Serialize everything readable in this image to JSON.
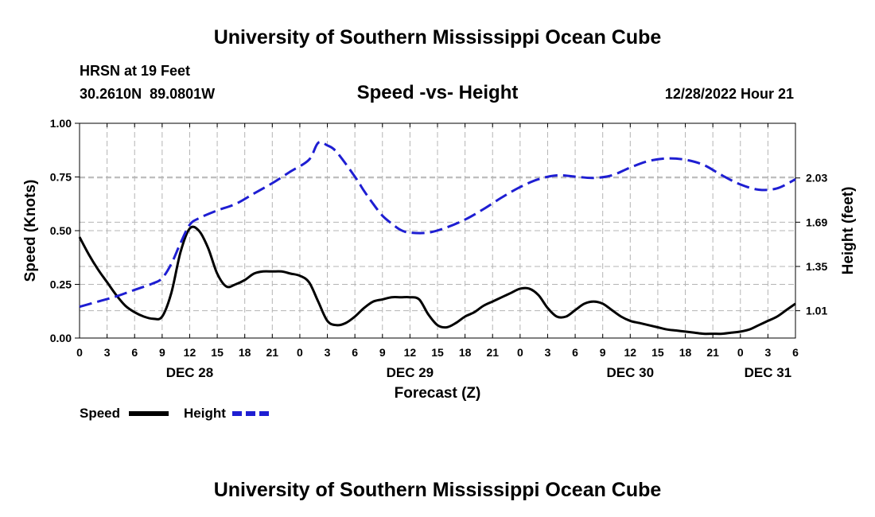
{
  "header": {
    "title": "University of Southern Mississippi Ocean Cube",
    "station": "HRSN at 19 Feet",
    "coordinates": "30.2610N  89.0801W",
    "datetime": "12/28/2022 Hour 21"
  },
  "footer": {
    "title": "University of Southern Mississippi Ocean Cube"
  },
  "chart_data": {
    "type": "line",
    "title": "Speed -vs- Height",
    "xlabel": "Forecast (Z)",
    "ylabel": "Speed (Knots)",
    "y2label": "Height (feet)",
    "x_unit": "forecast hour from 0Z Dec 28",
    "xlim": [
      0,
      78
    ],
    "ylim": [
      0,
      1
    ],
    "y2lim": [
      0.8,
      2.45
    ],
    "grid": true,
    "x_tick_hours": [
      0,
      3,
      6,
      9,
      12,
      15,
      18,
      21,
      24,
      27,
      30,
      33,
      36,
      39,
      42,
      45,
      48,
      51,
      54,
      57,
      60,
      63,
      66,
      69,
      72,
      75,
      78
    ],
    "x_tick_labels": [
      "0",
      "3",
      "6",
      "9",
      "12",
      "15",
      "18",
      "21",
      "0",
      "3",
      "6",
      "9",
      "12",
      "15",
      "18",
      "21",
      "0",
      "3",
      "6",
      "9",
      "12",
      "15",
      "18",
      "21",
      "0",
      "3",
      "6"
    ],
    "y_ticks": [
      0,
      0.25,
      0.5,
      0.75,
      1.0
    ],
    "y_tick_labels": [
      "0.00",
      "0.25",
      "0.50",
      "0.75",
      "1.00"
    ],
    "y2_ticks": [
      1.01,
      1.35,
      1.69,
      2.03
    ],
    "y2_tick_labels": [
      "1.01",
      "1.35",
      "1.69",
      "2.03"
    ],
    "day_labels": [
      {
        "hour": 12,
        "label": "DEC 28"
      },
      {
        "hour": 36,
        "label": "DEC 29"
      },
      {
        "hour": 60,
        "label": "DEC 30"
      },
      {
        "hour": 75,
        "label": "DEC 31"
      }
    ],
    "series": [
      {
        "name": "Speed",
        "axis": "left",
        "color": "#000000",
        "dash": "solid",
        "x": [
          0,
          1,
          2,
          3,
          4,
          5,
          6,
          7,
          8,
          9,
          10,
          11,
          12,
          13,
          14,
          15,
          16,
          17,
          18,
          19,
          20,
          21,
          22,
          23,
          24,
          25,
          26,
          27,
          28,
          29,
          30,
          31,
          32,
          33,
          34,
          35,
          36,
          37,
          38,
          39,
          40,
          41,
          42,
          43,
          44,
          45,
          46,
          47,
          48,
          49,
          50,
          51,
          52,
          53,
          54,
          55,
          56,
          57,
          58,
          59,
          60,
          61,
          62,
          63,
          64,
          65,
          66,
          67,
          68,
          69,
          70,
          71,
          72,
          73,
          74,
          75,
          76,
          77,
          78
        ],
        "values": [
          0.47,
          0.39,
          0.32,
          0.26,
          0.2,
          0.15,
          0.12,
          0.1,
          0.09,
          0.1,
          0.21,
          0.4,
          0.51,
          0.5,
          0.42,
          0.3,
          0.24,
          0.25,
          0.27,
          0.3,
          0.31,
          0.31,
          0.31,
          0.3,
          0.29,
          0.26,
          0.17,
          0.08,
          0.06,
          0.07,
          0.1,
          0.14,
          0.17,
          0.18,
          0.19,
          0.19,
          0.19,
          0.18,
          0.11,
          0.06,
          0.05,
          0.07,
          0.1,
          0.12,
          0.15,
          0.17,
          0.19,
          0.21,
          0.23,
          0.23,
          0.2,
          0.14,
          0.1,
          0.1,
          0.13,
          0.16,
          0.17,
          0.16,
          0.13,
          0.1,
          0.08,
          0.07,
          0.06,
          0.05,
          0.04,
          0.035,
          0.03,
          0.025,
          0.02,
          0.02,
          0.02,
          0.025,
          0.03,
          0.04,
          0.06,
          0.08,
          0.1,
          0.13,
          0.16
        ]
      },
      {
        "name": "Height",
        "axis": "right",
        "color": "#1e1ed2",
        "dash": "dashed",
        "x": [
          0,
          2,
          4,
          6,
          8,
          9,
          10,
          11,
          12,
          13,
          15,
          17,
          19,
          21,
          23,
          25,
          26,
          27,
          28,
          30,
          31,
          32,
          33,
          34,
          35,
          36,
          38,
          40,
          42,
          44,
          46,
          48,
          50,
          52,
          54,
          56,
          58,
          60,
          62,
          64,
          66,
          68,
          70,
          72,
          74,
          76,
          78
        ],
        "values": [
          1.04,
          1.08,
          1.12,
          1.17,
          1.22,
          1.26,
          1.37,
          1.53,
          1.67,
          1.72,
          1.78,
          1.83,
          1.91,
          1.99,
          2.08,
          2.17,
          2.3,
          2.28,
          2.23,
          2.04,
          1.93,
          1.83,
          1.74,
          1.68,
          1.63,
          1.61,
          1.61,
          1.65,
          1.71,
          1.79,
          1.88,
          1.96,
          2.02,
          2.05,
          2.04,
          2.03,
          2.05,
          2.11,
          2.16,
          2.18,
          2.17,
          2.13,
          2.05,
          1.98,
          1.94,
          1.95,
          2.02
        ]
      }
    ],
    "legend": [
      {
        "label": "Speed",
        "color": "#000000",
        "dash": "solid"
      },
      {
        "label": "Height",
        "color": "#1e1ed2",
        "dash": "dashed"
      }
    ]
  }
}
